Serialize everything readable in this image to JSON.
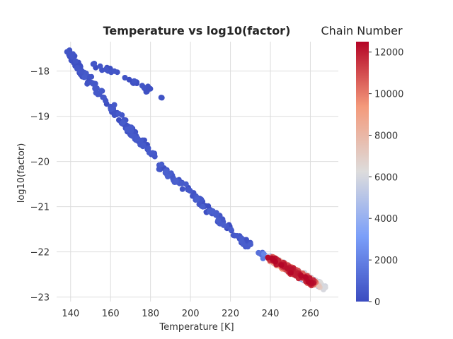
{
  "chart_data": {
    "type": "scatter",
    "title": "Temperature vs log10(factor)",
    "xlabel": "Temperature [K]",
    "ylabel": "log10(factor)",
    "xlim": [
      133,
      274
    ],
    "ylim": [
      -23.1,
      -17.35
    ],
    "xticks": [
      140,
      160,
      180,
      200,
      220,
      240,
      260
    ],
    "yticks": [
      -18,
      -19,
      -20,
      -21,
      -22,
      -23
    ],
    "grid": true,
    "colormap": "coolwarm",
    "colorbar": {
      "title": "Chain Number",
      "range": [
        0,
        12500
      ],
      "ticks": [
        0,
        2000,
        4000,
        6000,
        8000,
        10000,
        12000
      ]
    },
    "point_groups": [
      {
        "x": [
          138,
          149
        ],
        "y": [
          -17.5,
          -18.3
        ],
        "n": 40,
        "chain": [
          0,
          400
        ]
      },
      {
        "x": [
          150,
          188
        ],
        "y": [
          -17.8,
          -18.6
        ],
        "n": 30,
        "chain": [
          0,
          400
        ]
      },
      {
        "x": [
          146,
          175
        ],
        "y": [
          -18.0,
          -19.6
        ],
        "n": 80,
        "chain": [
          0,
          600
        ]
      },
      {
        "x": [
          168,
          182
        ],
        "y": [
          -19.2,
          -19.9
        ],
        "n": 40,
        "chain": [
          0,
          600
        ]
      },
      {
        "x": [
          185,
          230
        ],
        "y": [
          -20.1,
          -21.9
        ],
        "n": 110,
        "chain": [
          0,
          800
        ]
      },
      {
        "x": [
          232,
          265
        ],
        "y": [
          -21.95,
          -22.75
        ],
        "n": 40,
        "chain": [
          0,
          2500
        ]
      },
      {
        "x": [
          240,
          262
        ],
        "y": [
          -22.15,
          -22.7
        ],
        "n": 450,
        "chain": [
          4000,
          12500
        ]
      },
      {
        "x": [
          255,
          267
        ],
        "y": [
          -22.5,
          -22.8
        ],
        "n": 40,
        "chain": [
          5500,
          7500
        ]
      }
    ]
  }
}
